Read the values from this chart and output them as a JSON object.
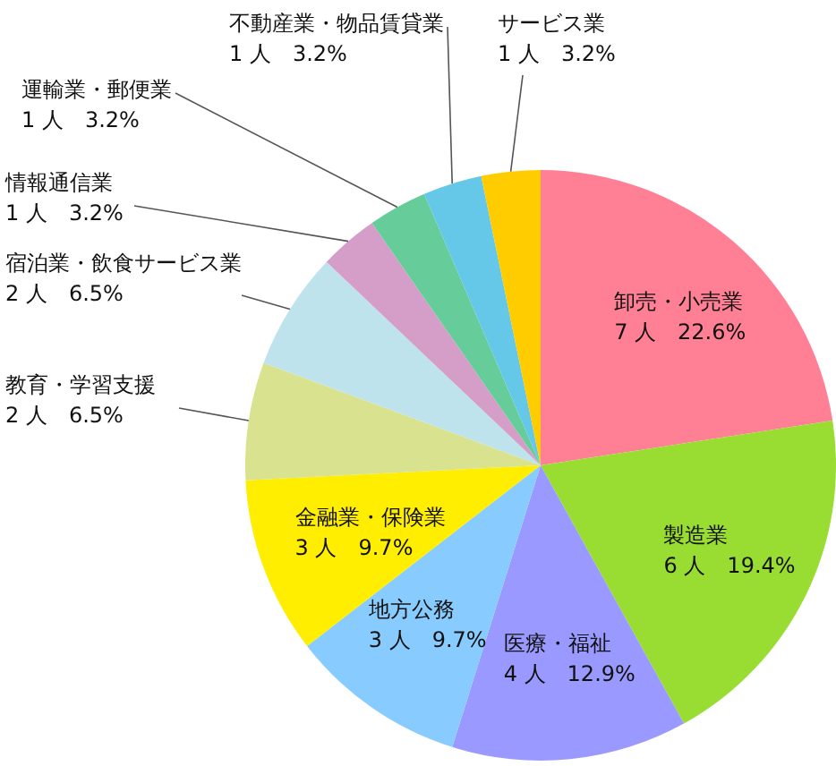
{
  "chart_data": {
    "type": "pie",
    "categories": [
      "卸売・小売業",
      "製造業",
      "医療・福祉",
      "地方公務",
      "金融業・保険業",
      "教育・学習支援",
      "宿泊業・飲食サービス業",
      "情報通信業",
      "運輸業・郵便業",
      "不動産業・物品賃貸業",
      "サービス業"
    ],
    "values": [
      7,
      6,
      4,
      3,
      3,
      2,
      2,
      1,
      1,
      1,
      1
    ],
    "value_labels": [
      "7 人　22.6%",
      "6 人　19.4%",
      "4 人　12.9%",
      "3 人　9.7%",
      "3 人　9.7%",
      "2 人　6.5%",
      "2 人　6.5%",
      "1 人　3.2%",
      "1 人　3.2%",
      "1 人　3.2%",
      "1 人　3.2%"
    ],
    "colors": [
      "#ff8095",
      "#99dd33",
      "#9999ff",
      "#88ccff",
      "#ffee00",
      "#d9e38f",
      "#bfe3ec",
      "#d49ec9",
      "#66cc99",
      "#66c8e8",
      "#ffcc00"
    ]
  }
}
